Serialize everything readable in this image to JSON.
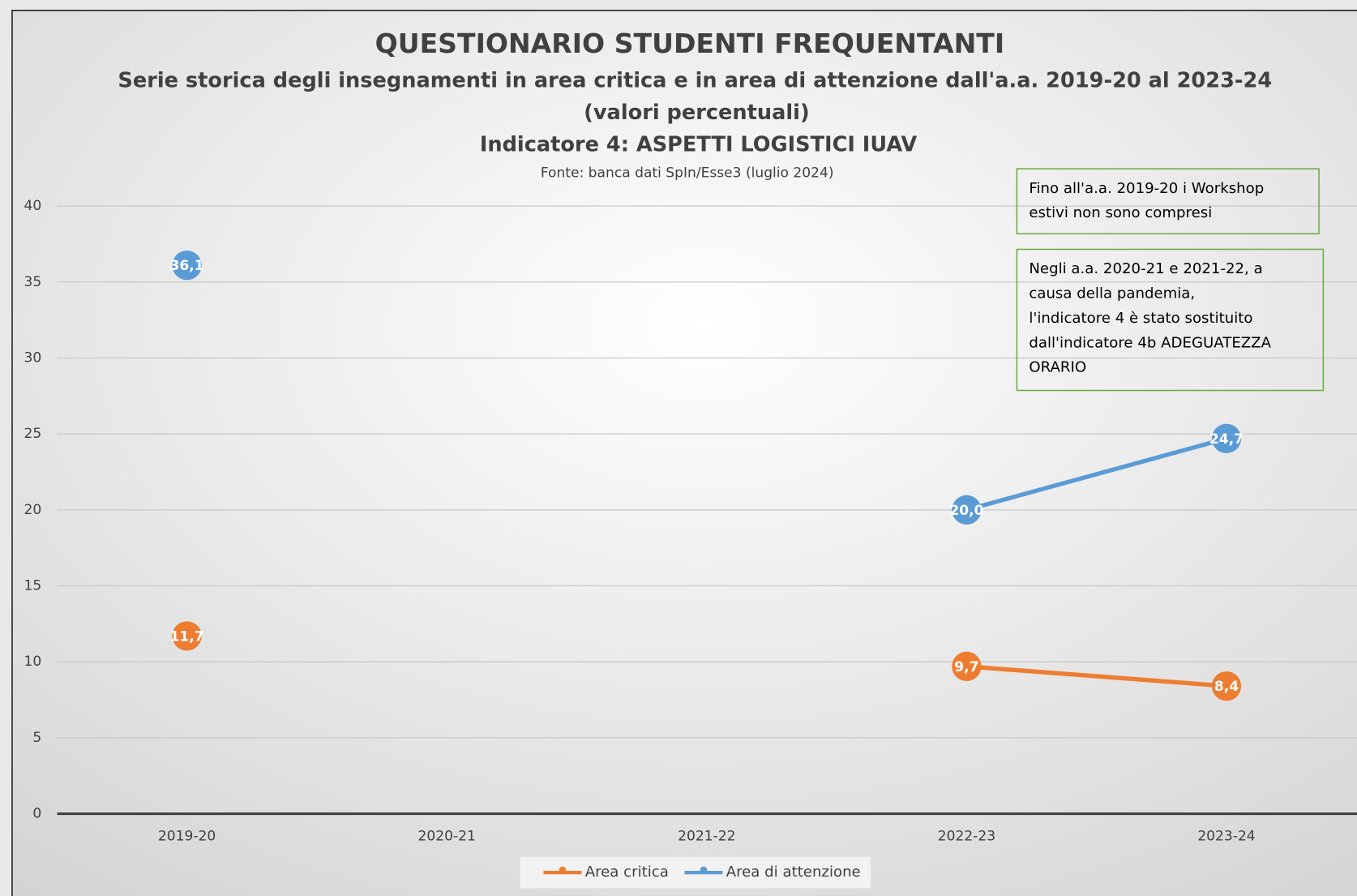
{
  "chart_data": {
    "type": "line",
    "title": "QUESTIONARIO STUDENTI FREQUENTANTI",
    "subtitle": "Serie storica degli insegnamenti in area critica e in area di attenzione dall'a.a. 2019-20 al 2023-24",
    "subtitle2": "(valori percentuali)",
    "subtitle3": "Indicatore 4: ASPETTI LOGISTICI IUAV",
    "source": "Fonte: banca dati SpIn/Esse3 (luglio 2024)",
    "categories": [
      "2019-20",
      "2020-21",
      "2021-22",
      "2022-23",
      "2023-24"
    ],
    "series": [
      {
        "name": "Area critica",
        "color": "#ED7D31",
        "values": [
          11.7,
          null,
          null,
          9.7,
          8.4
        ],
        "value_labels": [
          "11,7",
          null,
          null,
          "9,7",
          "8,4"
        ]
      },
      {
        "name": "Area di attenzione",
        "color": "#5B9BD5",
        "values": [
          36.1,
          null,
          null,
          20.0,
          24.7
        ],
        "value_labels": [
          "36,1",
          null,
          null,
          "20,0",
          "24,7"
        ]
      }
    ],
    "ylim": [
      0,
      40
    ],
    "yticks": [
      0,
      5,
      10,
      15,
      20,
      25,
      30,
      35,
      40
    ],
    "grid": true,
    "legend": "bottom",
    "annotations": [
      [
        "Fino all'a.a. 2019-20 i Workshop",
        "estivi non sono compresi"
      ],
      [
        "Negli a.a. 2020-21 e 2021-22, a",
        "causa della pandemia,",
        "l'indicatore 4 è stato sostituito",
        "dall'indicatore 4b ADEGUATEZZA",
        "ORARIO"
      ]
    ]
  }
}
